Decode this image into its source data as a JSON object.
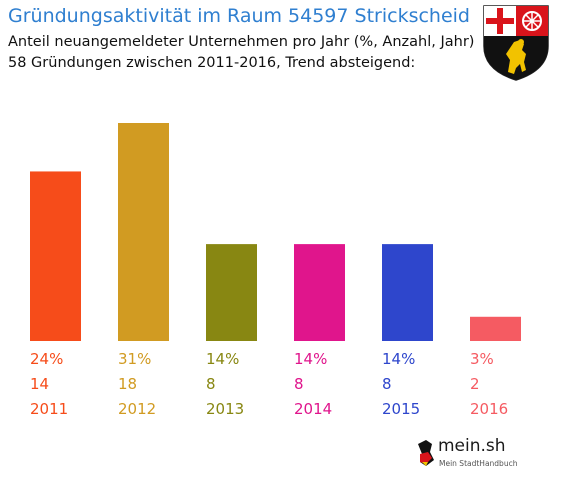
{
  "title": "Gründungsaktivität im Raum 54597 Strickscheid",
  "subtitle_line1": "Anteil neuangemeldeter Unternehmen pro Jahr (%, Anzahl, Jahr)",
  "subtitle_line2": "58 Gründungen zwischen 2011-2016, Trend absteigend:",
  "logo": {
    "name": "mein.sh",
    "tagline": "Mein StadtHandbuch"
  },
  "crest_icon": "rheinland-pfalz-coat-of-arms-icon",
  "chart_data": {
    "type": "bar",
    "categories": [
      "2011",
      "2012",
      "2013",
      "2014",
      "2015",
      "2016"
    ],
    "values": [
      14,
      18,
      8,
      8,
      8,
      2
    ],
    "percent_labels": [
      "24%",
      "31%",
      "14%",
      "14%",
      "14%",
      "3%"
    ],
    "colors": [
      "#f64c1a",
      "#d19b22",
      "#888712",
      "#e0158c",
      "#2e46cc",
      "#f55b62"
    ],
    "ylim": [
      0,
      18
    ],
    "xlabel": "",
    "ylabel": "",
    "grid": false,
    "legend": "none"
  }
}
